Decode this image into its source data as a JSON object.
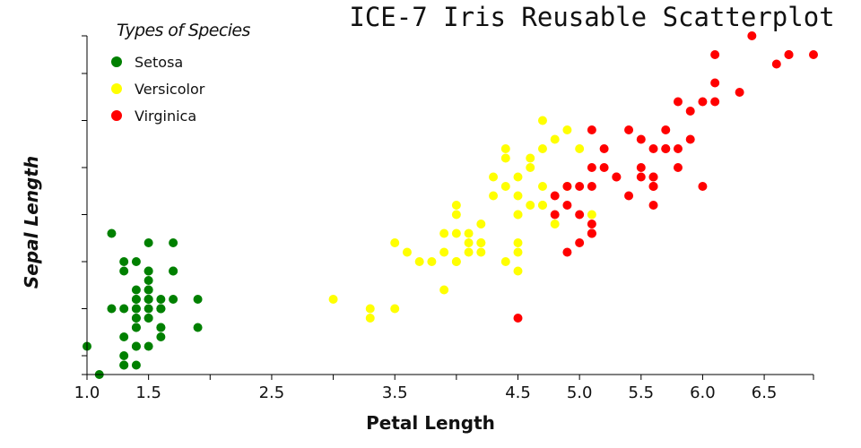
{
  "chart_data": {
    "type": "scatter",
    "title": "ICE-7 Iris Reusable Scatterplot",
    "xlabel": "Petal Length",
    "ylabel": "Sepal Length",
    "xlim": [
      1.0,
      6.9
    ],
    "ylim": [
      4.3,
      7.9
    ],
    "x_ticks": [
      1.0,
      1.5,
      2.0,
      2.5,
      3.0,
      3.5,
      4.0,
      4.5,
      5.0,
      5.5,
      6.0,
      6.5,
      6.9
    ],
    "x_tick_labels": [
      "1.0",
      "1.5",
      "",
      "2.5",
      "",
      "3.5",
      "",
      "4.5",
      "5.0",
      "5.5",
      "6.0",
      "6.5",
      ""
    ],
    "y_ticks": [
      4.3,
      4.5,
      5.0,
      5.5,
      6.0,
      6.5,
      7.0,
      7.5,
      7.9
    ],
    "y_tick_labels": [
      "",
      "",
      "",
      "",
      "",
      "",
      "",
      "",
      ""
    ],
    "grid": false,
    "legend": {
      "title": "Types of Species",
      "position": "top-left"
    },
    "series": [
      {
        "name": "Setosa",
        "color": "#008000",
        "points": [
          [
            1.4,
            5.1
          ],
          [
            1.4,
            4.9
          ],
          [
            1.3,
            4.7
          ],
          [
            1.5,
            4.6
          ],
          [
            1.4,
            5.0
          ],
          [
            1.7,
            5.4
          ],
          [
            1.4,
            4.6
          ],
          [
            1.5,
            5.0
          ],
          [
            1.4,
            4.4
          ],
          [
            1.5,
            4.9
          ],
          [
            1.5,
            5.4
          ],
          [
            1.6,
            4.8
          ],
          [
            1.4,
            4.8
          ],
          [
            1.1,
            4.3
          ],
          [
            1.2,
            5.8
          ],
          [
            1.5,
            5.7
          ],
          [
            1.3,
            5.4
          ],
          [
            1.4,
            5.1
          ],
          [
            1.7,
            5.7
          ],
          [
            1.5,
            5.1
          ],
          [
            1.7,
            5.4
          ],
          [
            1.5,
            5.1
          ],
          [
            1.0,
            4.6
          ],
          [
            1.7,
            5.1
          ],
          [
            1.9,
            4.8
          ],
          [
            1.6,
            5.0
          ],
          [
            1.6,
            5.0
          ],
          [
            1.5,
            5.2
          ],
          [
            1.4,
            5.2
          ],
          [
            1.6,
            4.7
          ],
          [
            1.6,
            4.8
          ],
          [
            1.5,
            5.4
          ],
          [
            1.5,
            5.2
          ],
          [
            1.4,
            5.5
          ],
          [
            1.5,
            4.9
          ],
          [
            1.2,
            5.0
          ],
          [
            1.3,
            5.5
          ],
          [
            1.4,
            4.9
          ],
          [
            1.3,
            4.4
          ],
          [
            1.5,
            5.1
          ],
          [
            1.3,
            5.0
          ],
          [
            1.3,
            4.5
          ],
          [
            1.3,
            4.4
          ],
          [
            1.6,
            5.0
          ],
          [
            1.9,
            5.1
          ],
          [
            1.4,
            4.8
          ],
          [
            1.6,
            5.1
          ],
          [
            1.4,
            4.6
          ],
          [
            1.5,
            5.3
          ],
          [
            1.4,
            5.0
          ]
        ]
      },
      {
        "name": "Versicolor",
        "color": "#ffff00",
        "points": [
          [
            4.7,
            7.0
          ],
          [
            4.5,
            6.4
          ],
          [
            4.9,
            6.9
          ],
          [
            4.0,
            5.5
          ],
          [
            4.6,
            6.5
          ],
          [
            4.5,
            5.7
          ],
          [
            4.7,
            6.3
          ],
          [
            3.3,
            4.9
          ],
          [
            4.6,
            6.6
          ],
          [
            3.9,
            5.2
          ],
          [
            3.5,
            5.0
          ],
          [
            4.2,
            5.9
          ],
          [
            4.0,
            6.0
          ],
          [
            4.7,
            6.1
          ],
          [
            3.6,
            5.6
          ],
          [
            4.4,
            6.7
          ],
          [
            4.5,
            5.6
          ],
          [
            4.1,
            5.8
          ],
          [
            4.5,
            6.2
          ],
          [
            3.9,
            5.6
          ],
          [
            4.8,
            5.9
          ],
          [
            4.0,
            6.1
          ],
          [
            4.9,
            6.3
          ],
          [
            4.7,
            6.1
          ],
          [
            4.3,
            6.4
          ],
          [
            4.4,
            6.6
          ],
          [
            4.8,
            6.8
          ],
          [
            5.0,
            6.7
          ],
          [
            4.5,
            6.0
          ],
          [
            3.5,
            5.7
          ],
          [
            3.8,
            5.5
          ],
          [
            3.7,
            5.5
          ],
          [
            3.9,
            5.8
          ],
          [
            5.1,
            6.0
          ],
          [
            4.5,
            5.4
          ],
          [
            4.5,
            6.0
          ],
          [
            4.7,
            6.7
          ],
          [
            4.4,
            6.3
          ],
          [
            4.1,
            5.6
          ],
          [
            4.0,
            5.5
          ],
          [
            4.4,
            5.5
          ],
          [
            4.6,
            6.1
          ],
          [
            4.0,
            5.8
          ],
          [
            3.3,
            5.0
          ],
          [
            4.2,
            5.6
          ],
          [
            4.2,
            5.7
          ],
          [
            4.2,
            5.7
          ],
          [
            4.3,
            6.2
          ],
          [
            3.0,
            5.1
          ],
          [
            4.1,
            5.7
          ]
        ]
      },
      {
        "name": "Virginica",
        "color": "#ff0000",
        "points": [
          [
            6.0,
            6.3
          ],
          [
            5.1,
            5.8
          ],
          [
            5.9,
            7.1
          ],
          [
            5.6,
            6.3
          ],
          [
            5.8,
            6.5
          ],
          [
            6.6,
            7.6
          ],
          [
            4.5,
            4.9
          ],
          [
            6.3,
            7.3
          ],
          [
            5.8,
            6.7
          ],
          [
            6.1,
            7.2
          ],
          [
            5.1,
            6.5
          ],
          [
            5.3,
            6.4
          ],
          [
            5.5,
            6.8
          ],
          [
            5.0,
            5.7
          ],
          [
            5.1,
            5.8
          ],
          [
            5.3,
            6.4
          ],
          [
            5.5,
            6.5
          ],
          [
            6.7,
            7.7
          ],
          [
            6.9,
            7.7
          ],
          [
            5.0,
            6.0
          ],
          [
            5.7,
            6.9
          ],
          [
            4.9,
            5.6
          ],
          [
            6.7,
            7.7
          ],
          [
            4.9,
            6.3
          ],
          [
            5.7,
            6.7
          ],
          [
            6.0,
            7.2
          ],
          [
            4.8,
            6.2
          ],
          [
            4.9,
            6.1
          ],
          [
            5.6,
            6.4
          ],
          [
            5.8,
            7.2
          ],
          [
            6.1,
            7.4
          ],
          [
            6.4,
            7.9
          ],
          [
            5.6,
            6.4
          ],
          [
            5.1,
            6.3
          ],
          [
            5.6,
            6.1
          ],
          [
            6.1,
            7.7
          ],
          [
            5.6,
            6.3
          ],
          [
            5.5,
            6.4
          ],
          [
            4.8,
            6.0
          ],
          [
            5.4,
            6.9
          ],
          [
            5.6,
            6.7
          ],
          [
            5.1,
            6.9
          ],
          [
            5.1,
            5.8
          ],
          [
            5.9,
            6.8
          ],
          [
            5.7,
            6.7
          ],
          [
            5.2,
            6.7
          ],
          [
            5.0,
            6.3
          ],
          [
            5.2,
            6.5
          ],
          [
            5.4,
            6.2
          ],
          [
            5.1,
            5.9
          ]
        ]
      }
    ]
  }
}
